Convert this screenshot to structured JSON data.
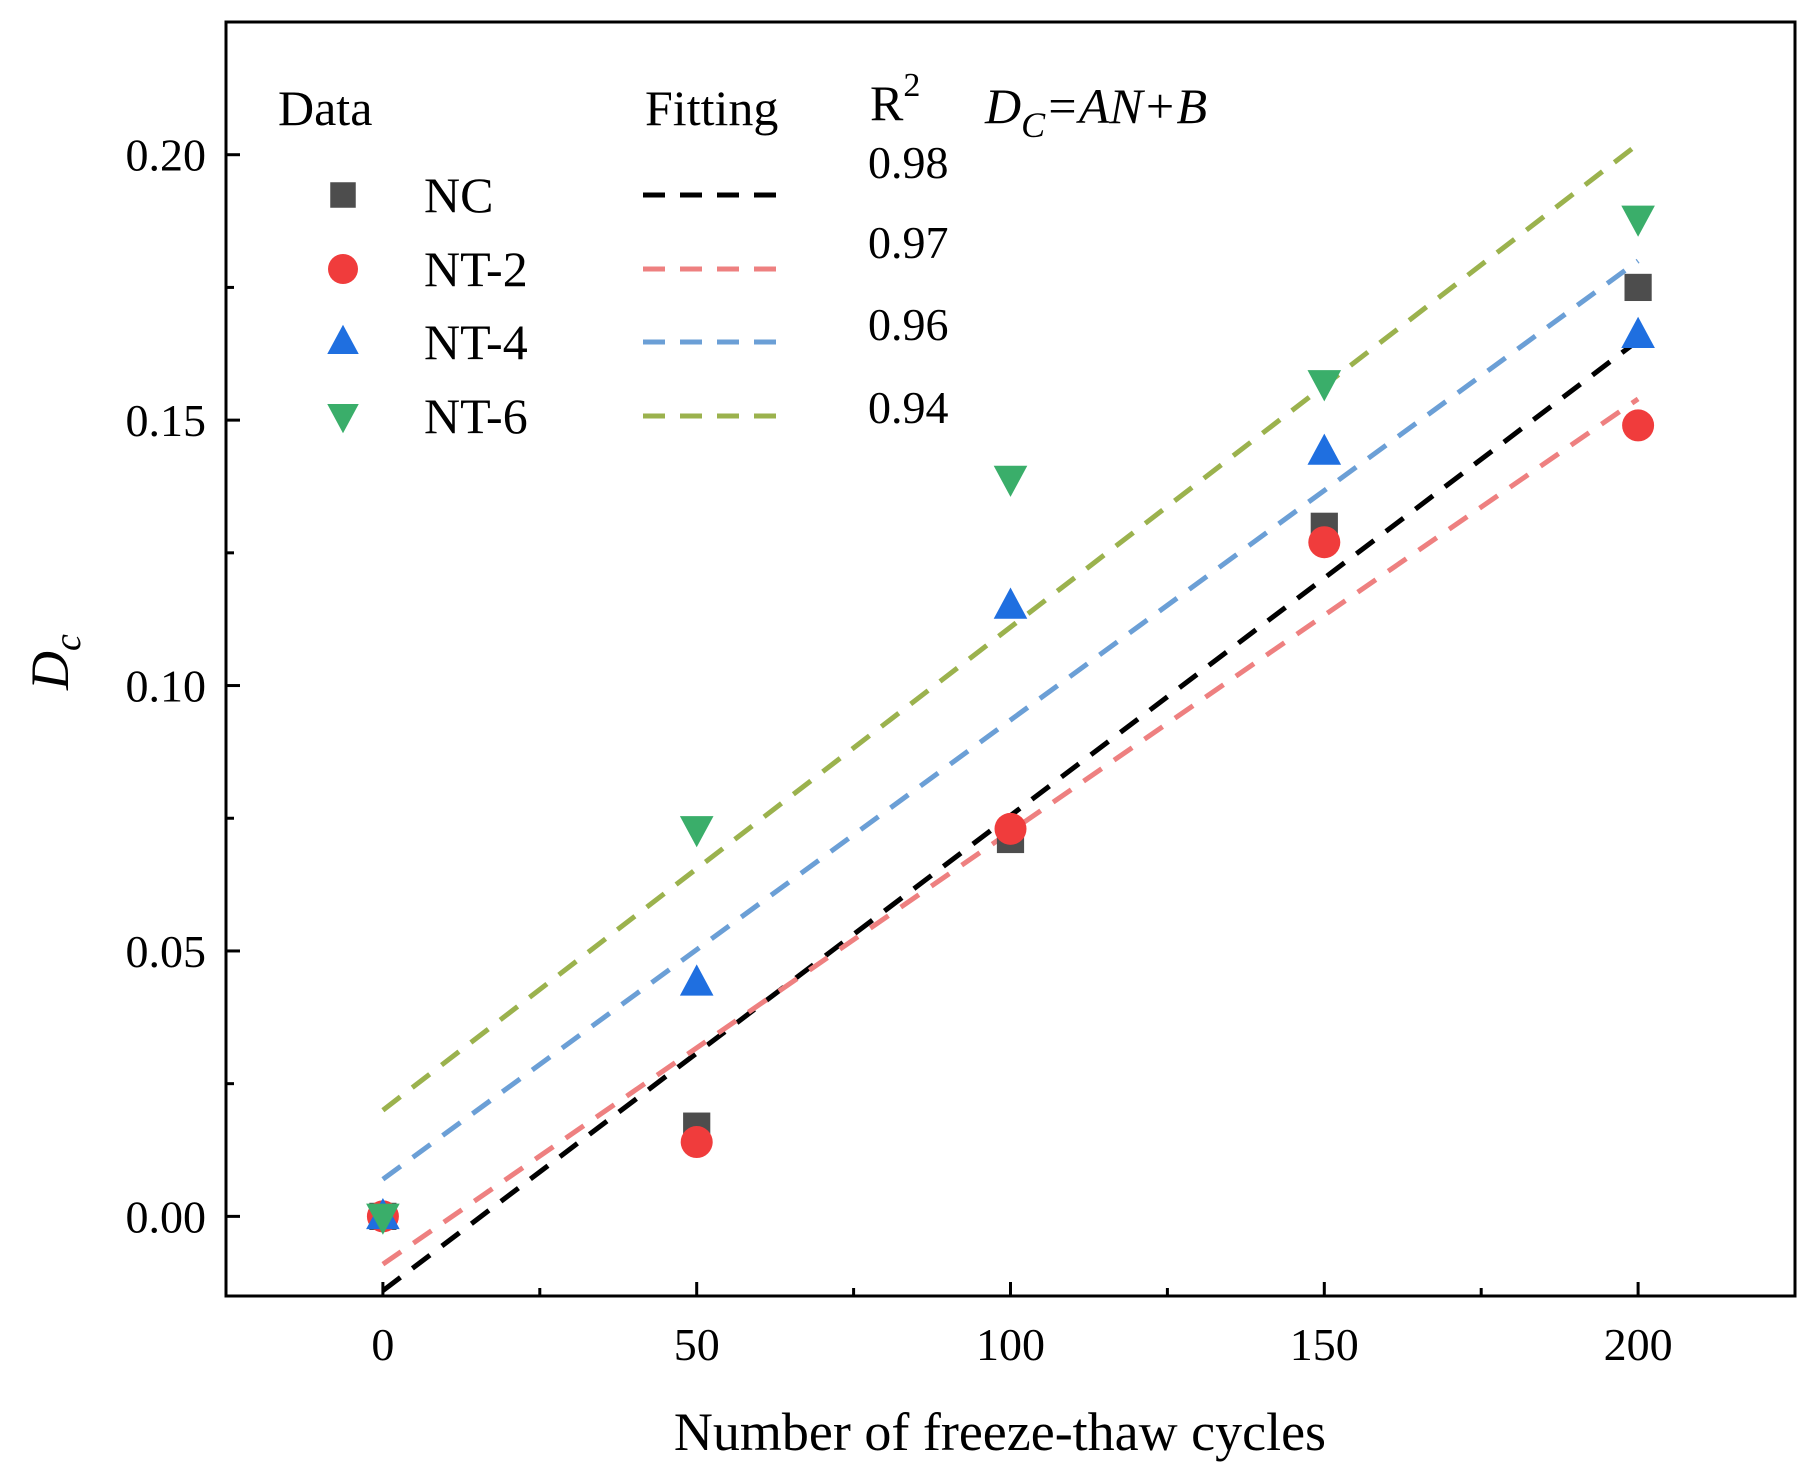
{
  "chart_data": {
    "type": "scatter",
    "xlabel": "Number of freeze-thaw cycles",
    "ylabel": {
      "base": "D",
      "sub": "c"
    },
    "xlim": [
      -25,
      225
    ],
    "ylim": [
      -0.015,
      0.225
    ],
    "xticks": [
      0,
      50,
      100,
      150,
      200
    ],
    "xtick_labels": [
      "0",
      "50",
      "100",
      "150",
      "200"
    ],
    "yticks": [
      0.0,
      0.05,
      0.1,
      0.15,
      0.2
    ],
    "ytick_labels": [
      "0.00",
      "0.05",
      "0.10",
      "0.15",
      "0.20"
    ],
    "x": [
      0,
      50,
      100,
      150,
      200
    ],
    "series": [
      {
        "name": "NC",
        "marker": "square",
        "color": "#4d4d4d",
        "values": [
          0.0,
          0.017,
          0.071,
          0.13,
          0.175
        ],
        "fit": {
          "color": "#000000",
          "x": [
            0,
            200
          ],
          "y": [
            -0.014,
            0.165
          ],
          "r2": "0.98"
        }
      },
      {
        "name": "NT-2",
        "marker": "circle",
        "color": "#f03c3c",
        "values": [
          0.0,
          0.014,
          0.073,
          0.127,
          0.149
        ],
        "fit": {
          "color": "#ee8080",
          "x": [
            0,
            200
          ],
          "y": [
            -0.009,
            0.154
          ],
          "r2": "0.97"
        }
      },
      {
        "name": "NT-4",
        "marker": "triangle-up",
        "color": "#1f6fe0",
        "values": [
          0.0,
          0.044,
          0.115,
          0.144,
          0.166
        ],
        "fit": {
          "color": "#6b9fd6",
          "x": [
            0,
            200
          ],
          "y": [
            0.007,
            0.18
          ],
          "r2": "0.96"
        }
      },
      {
        "name": "NT-6",
        "marker": "triangle-down",
        "color": "#3aae6a",
        "values": [
          0.0,
          0.073,
          0.139,
          0.157,
          0.188
        ],
        "fit": {
          "color": "#9bb24d",
          "x": [
            0,
            200
          ],
          "y": [
            0.02,
            0.202
          ],
          "r2": "0.94"
        }
      }
    ],
    "legend": {
      "data_header": "Data",
      "fitting_header": "Fitting",
      "r2_header": {
        "base": "R",
        "sup": "2"
      },
      "equation": {
        "D": "D",
        "sub": "C",
        "rest": "=AN+B"
      },
      "placement": "top-left"
    }
  }
}
